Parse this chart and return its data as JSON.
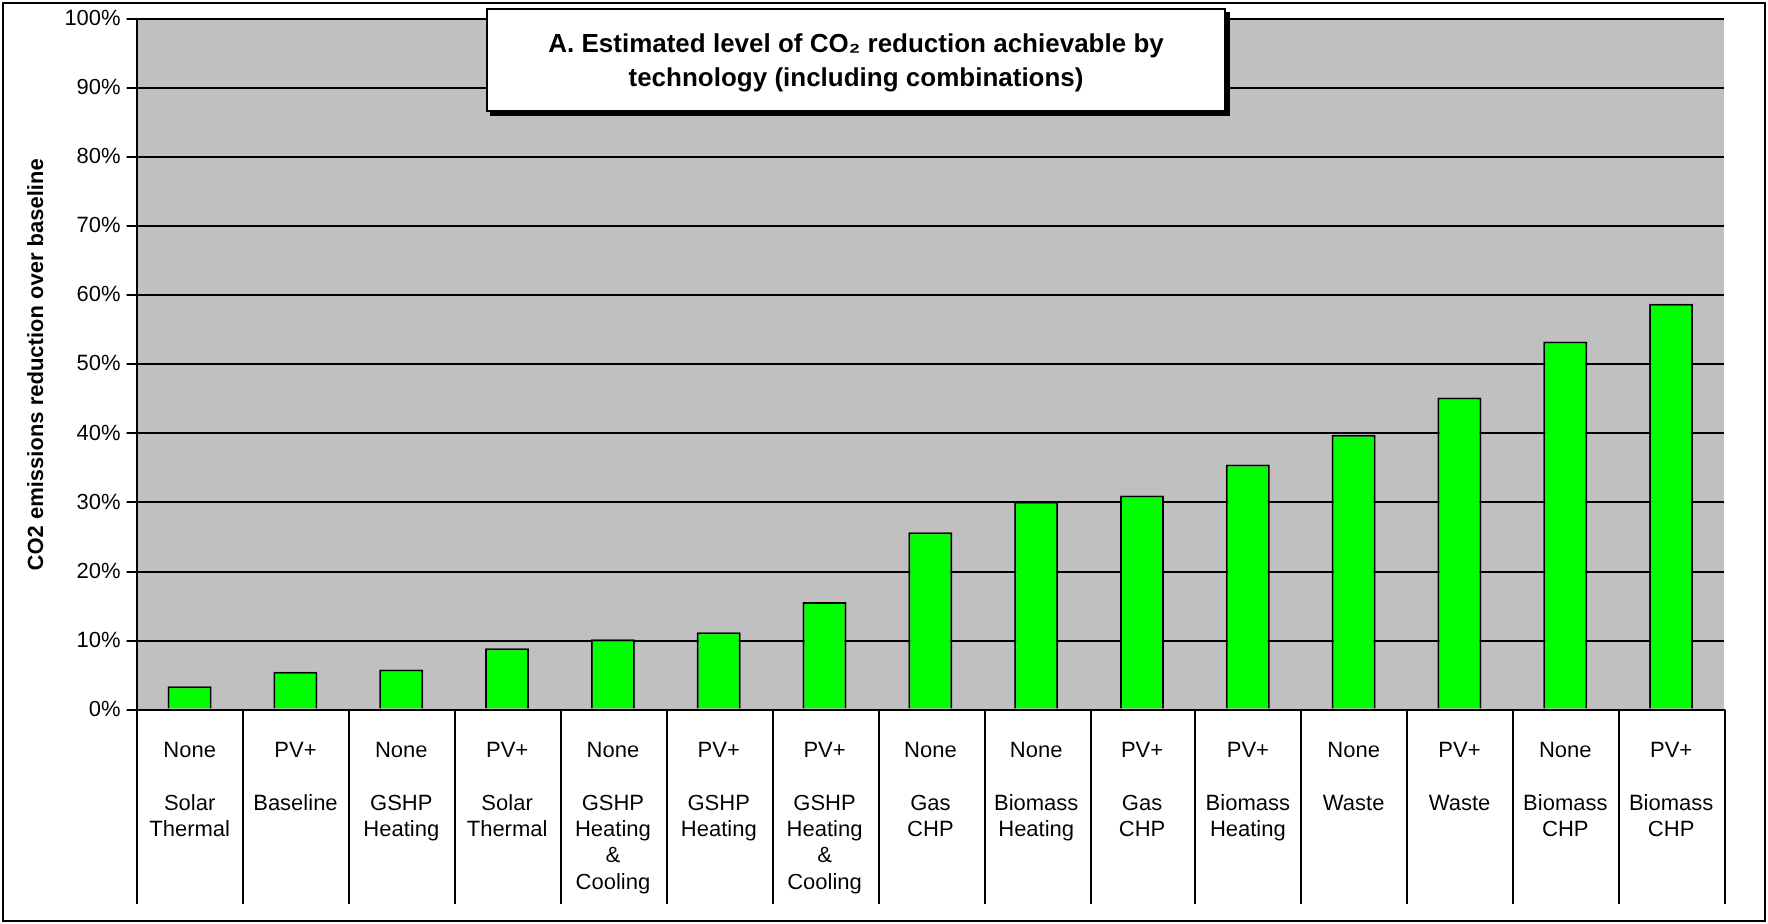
{
  "chart_data": {
    "type": "bar",
    "title": "A. Estimated level of CO₂ reduction achievable by technology (including combinations)",
    "ylabel": "CO2 emissions reduction over baseline",
    "categories": [
      "None\n\nSolar\nThermal",
      "PV+\n\nBaseline",
      "None\n\nGSHP\nHeating",
      "PV+\n\nSolar\nThermal",
      "None\n\nGSHP\nHeating\n&\nCooling",
      "PV+\n\nGSHP\nHeating",
      "PV+\n\nGSHP\nHeating\n&\nCooling",
      "None\n\nGas\nCHP",
      "None\n\nBiomass\nHeating",
      "PV+\n\nGas\nCHP",
      "PV+\n\nBiomass\nHeating",
      "None\n\nWaste",
      "PV+\n\nWaste",
      "None\n\nBiomass\nCHP",
      "PV+\n\nBiomass\nCHP"
    ],
    "values": [
      3.4,
      5.5,
      5.8,
      8.9,
      10.2,
      11.2,
      15.6,
      25.7,
      30.1,
      31.0,
      35.5,
      39.8,
      45.2,
      53.3,
      58.8
    ],
    "color": "#00ff00",
    "ylim": [
      0,
      100
    ],
    "yticks": [
      {
        "value": 0,
        "label": "0%"
      },
      {
        "value": 10,
        "label": "10%"
      },
      {
        "value": 20,
        "label": "20%"
      },
      {
        "value": 30,
        "label": "30%"
      },
      {
        "value": 40,
        "label": "40%"
      },
      {
        "value": 50,
        "label": "50%"
      },
      {
        "value": 60,
        "label": "60%"
      },
      {
        "value": 70,
        "label": "70%"
      },
      {
        "value": 80,
        "label": "80%"
      },
      {
        "value": 90,
        "label": "90%"
      },
      {
        "value": 100,
        "label": "100%"
      }
    ],
    "grid": "y",
    "legend": false
  }
}
